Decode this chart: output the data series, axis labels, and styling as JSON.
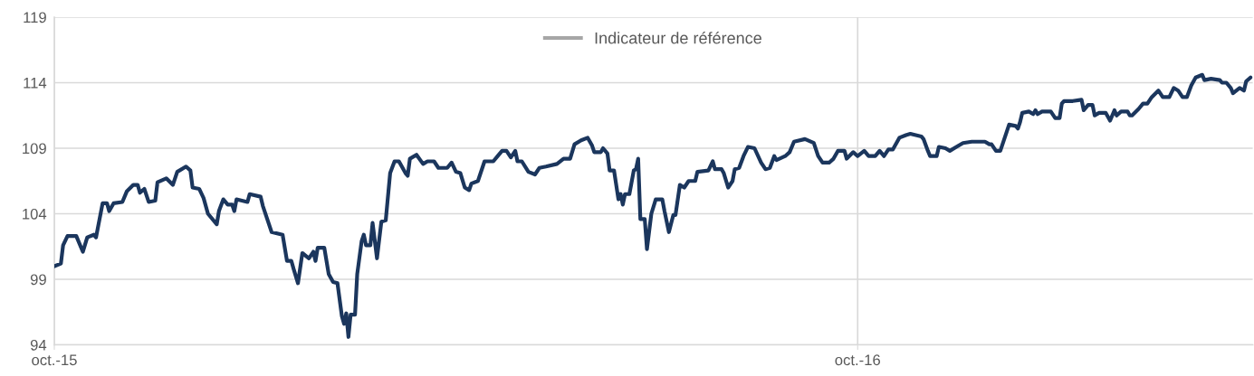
{
  "chart_data": {
    "type": "line",
    "x": [
      "2015-10-01",
      "2015-10-04",
      "2015-10-05",
      "2015-10-07",
      "2015-10-11",
      "2015-10-14",
      "2015-10-16",
      "2015-10-19",
      "2015-10-20",
      "2015-10-23",
      "2015-10-25",
      "2015-10-26",
      "2015-10-28",
      "2015-11-01",
      "2015-11-03",
      "2015-11-06",
      "2015-11-08",
      "2015-11-09",
      "2015-11-11",
      "2015-11-13",
      "2015-11-16",
      "2015-11-17",
      "2015-11-21",
      "2015-11-24",
      "2015-11-26",
      "2015-11-30",
      "2015-12-02",
      "2015-12-03",
      "2015-12-06",
      "2015-12-08",
      "2015-12-10",
      "2015-12-14",
      "2015-12-15",
      "2015-12-17",
      "2015-12-19",
      "2015-12-21",
      "2015-12-22",
      "2015-12-23",
      "2015-12-28",
      "2015-12-29",
      "2016-01-03",
      "2016-01-04",
      "2016-01-08",
      "2016-01-13",
      "2016-01-15",
      "2016-01-17",
      "2016-01-18",
      "2016-01-20",
      "2016-01-22",
      "2016-01-25",
      "2016-01-27",
      "2016-01-28",
      "2016-01-29",
      "2016-02-01",
      "2016-02-03",
      "2016-02-05",
      "2016-02-07",
      "2016-02-09",
      "2016-02-10",
      "2016-02-11",
      "2016-02-12",
      "2016-02-13",
      "2016-02-15",
      "2016-02-16",
      "2016-02-18",
      "2016-02-19",
      "2016-02-20",
      "2016-02-22",
      "2016-02-23",
      "2016-02-25",
      "2016-02-27",
      "2016-02-29",
      "2016-03-02",
      "2016-03-04",
      "2016-03-06",
      "2016-03-09",
      "2016-03-10",
      "2016-03-11",
      "2016-03-14",
      "2016-03-17",
      "2016-03-19",
      "2016-03-22",
      "2016-03-24",
      "2016-03-28",
      "2016-03-30",
      "2016-04-01",
      "2016-04-03",
      "2016-04-05",
      "2016-04-07",
      "2016-04-08",
      "2016-04-11",
      "2016-04-14",
      "2016-04-18",
      "2016-04-20",
      "2016-04-22",
      "2016-04-24",
      "2016-04-26",
      "2016-04-28",
      "2016-04-29",
      "2016-05-01",
      "2016-05-04",
      "2016-05-07",
      "2016-05-09",
      "2016-05-12",
      "2016-05-17",
      "2016-05-20",
      "2016-05-23",
      "2016-05-25",
      "2016-05-28",
      "2016-05-31",
      "2016-06-02",
      "2016-06-03",
      "2016-06-06",
      "2016-06-07",
      "2016-06-09",
      "2016-06-10",
      "2016-06-12",
      "2016-06-14",
      "2016-06-15",
      "2016-06-16",
      "2016-06-17",
      "2016-06-19",
      "2016-06-21",
      "2016-06-22",
      "2016-06-23",
      "2016-06-24",
      "2016-06-26",
      "2016-06-27",
      "2016-06-29",
      "2016-07-01",
      "2016-07-04",
      "2016-07-05",
      "2016-07-07",
      "2016-07-09",
      "2016-07-10",
      "2016-07-12",
      "2016-07-14",
      "2016-07-16",
      "2016-07-19",
      "2016-07-20",
      "2016-07-25",
      "2016-07-27",
      "2016-07-28",
      "2016-07-31",
      "2016-08-01",
      "2016-08-03",
      "2016-08-05",
      "2016-08-06",
      "2016-08-08",
      "2016-08-10",
      "2016-08-12",
      "2016-08-15",
      "2016-08-18",
      "2016-08-20",
      "2016-08-22",
      "2016-08-24",
      "2016-08-25",
      "2016-08-29",
      "2016-08-31",
      "2016-09-02",
      "2016-09-07",
      "2016-09-11",
      "2016-09-13",
      "2016-09-15",
      "2016-09-18",
      "2016-09-20",
      "2016-09-22",
      "2016-09-25",
      "2016-09-26",
      "2016-09-29",
      "2016-10-01",
      "2016-10-04",
      "2016-10-06",
      "2016-10-09",
      "2016-10-11",
      "2016-10-13",
      "2016-10-15",
      "2016-10-17",
      "2016-10-20",
      "2016-10-23",
      "2016-10-25",
      "2016-10-30",
      "2016-10-31",
      "2016-11-02",
      "2016-11-03",
      "2016-11-06",
      "2016-11-07",
      "2016-11-10",
      "2016-11-12",
      "2016-11-15",
      "2016-11-18",
      "2016-11-22",
      "2016-11-28",
      "2016-11-30",
      "2016-12-01",
      "2016-12-03",
      "2016-12-05",
      "2016-12-08",
      "2016-12-09",
      "2016-12-12",
      "2016-12-13",
      "2016-12-14",
      "2016-12-15",
      "2016-12-18",
      "2016-12-20",
      "2016-12-21",
      "2016-12-22",
      "2016-12-24",
      "2016-12-28",
      "2016-12-30",
      "2017-01-01",
      "2017-01-02",
      "2017-01-03",
      "2017-01-07",
      "2017-01-11",
      "2017-01-12",
      "2017-01-14",
      "2017-01-16",
      "2017-01-17",
      "2017-01-19",
      "2017-01-22",
      "2017-01-24",
      "2017-01-26",
      "2017-01-27",
      "2017-01-29",
      "2017-02-01",
      "2017-02-02",
      "2017-02-03",
      "2017-02-06",
      "2017-02-08",
      "2017-02-10",
      "2017-02-12",
      "2017-02-15",
      "2017-02-17",
      "2017-02-20",
      "2017-02-22",
      "2017-02-24",
      "2017-02-26",
      "2017-02-28",
      "2017-03-02",
      "2017-03-04",
      "2017-03-07",
      "2017-03-08",
      "2017-03-11",
      "2017-03-15",
      "2017-03-16",
      "2017-03-18",
      "2017-03-20",
      "2017-03-21",
      "2017-03-24",
      "2017-03-26",
      "2017-03-27",
      "2017-03-29"
    ],
    "series": [
      {
        "color": "#1b365d",
        "values": [
          100.0,
          100.2,
          101.6,
          102.3,
          102.3,
          101.1,
          102.2,
          102.4,
          102.2,
          104.8,
          104.8,
          104.2,
          104.8,
          104.9,
          105.7,
          106.2,
          106.2,
          105.6,
          105.9,
          104.9,
          105.0,
          106.4,
          106.7,
          106.2,
          107.2,
          107.6,
          107.3,
          106.0,
          105.9,
          105.2,
          104.0,
          103.2,
          104.2,
          105.1,
          104.7,
          104.7,
          104.2,
          105.1,
          104.9,
          105.5,
          105.3,
          104.6,
          102.6,
          102.4,
          100.4,
          100.4,
          99.8,
          98.7,
          101.0,
          100.6,
          101.1,
          100.4,
          101.4,
          101.4,
          99.4,
          98.8,
          98.7,
          96.2,
          95.6,
          96.4,
          94.6,
          96.3,
          96.3,
          99.4,
          101.9,
          102.4,
          101.6,
          101.6,
          103.3,
          100.6,
          103.4,
          103.5,
          107.1,
          108.0,
          108.0,
          107.1,
          106.9,
          108.2,
          108.5,
          107.8,
          108.0,
          108.0,
          107.5,
          107.5,
          107.9,
          107.2,
          107.1,
          106.0,
          105.8,
          106.3,
          106.5,
          108.0,
          108.0,
          108.4,
          108.8,
          108.8,
          108.3,
          108.8,
          108.0,
          108.0,
          107.2,
          107.0,
          107.5,
          107.6,
          107.8,
          108.2,
          108.2,
          109.3,
          109.6,
          109.8,
          109.2,
          108.7,
          108.7,
          109.0,
          108.6,
          107.3,
          107.3,
          105.1,
          105.5,
          104.7,
          105.5,
          105.5,
          107.3,
          107.4,
          108.2,
          103.6,
          103.6,
          101.3,
          104.0,
          105.1,
          105.1,
          104.2,
          102.6,
          103.9,
          103.9,
          106.2,
          106.0,
          106.5,
          106.5,
          107.2,
          107.3,
          108.0,
          107.4,
          107.4,
          107.1,
          106.0,
          106.5,
          107.4,
          107.5,
          108.4,
          109.1,
          109.0,
          107.9,
          107.4,
          107.5,
          108.4,
          108.1,
          108.4,
          108.7,
          109.5,
          109.7,
          109.4,
          108.4,
          107.9,
          107.9,
          108.2,
          108.8,
          108.8,
          108.2,
          108.7,
          108.4,
          108.8,
          108.4,
          108.4,
          108.8,
          108.4,
          108.9,
          108.9,
          109.8,
          110.0,
          110.1,
          109.9,
          109.7,
          108.8,
          108.4,
          108.4,
          109.1,
          109.0,
          108.8,
          109.1,
          109.4,
          109.5,
          109.5,
          109.3,
          109.3,
          108.8,
          108.8,
          110.3,
          110.8,
          110.7,
          110.5,
          111.0,
          111.7,
          111.8,
          111.6,
          111.9,
          111.6,
          111.8,
          111.8,
          111.3,
          111.3,
          112.4,
          112.6,
          112.6,
          112.7,
          111.9,
          112.3,
          112.3,
          111.5,
          111.7,
          111.7,
          111.1,
          111.9,
          111.5,
          111.8,
          111.8,
          111.5,
          111.5,
          112.0,
          112.4,
          112.4,
          112.9,
          113.4,
          112.9,
          112.9,
          113.6,
          113.4,
          112.9,
          112.9,
          113.8,
          114.4,
          114.6,
          114.2,
          114.3,
          114.2,
          114.0,
          114.0,
          113.6,
          113.2,
          113.6,
          113.4,
          114.1,
          114.4
        ]
      },
      {
        "name": "Indicateur de référence",
        "color": "#a6a6a6",
        "values": [
          null,
          null,
          null,
          null,
          null,
          null,
          null,
          null,
          null,
          null,
          null,
          null,
          null,
          null,
          null,
          null,
          null,
          null,
          null,
          null,
          null,
          null,
          null,
          null,
          null,
          null,
          null,
          null,
          null,
          null,
          null,
          null,
          null,
          null,
          null,
          null,
          null,
          null,
          null,
          null,
          null,
          null,
          null,
          null,
          null,
          null,
          null,
          null,
          null,
          null,
          null,
          null,
          null,
          null,
          null,
          null,
          null,
          null,
          null,
          null,
          null,
          null,
          null,
          null,
          null,
          null,
          null,
          null,
          null,
          null,
          null,
          null,
          null,
          null,
          null,
          null,
          null,
          null,
          null,
          null,
          null,
          null,
          null,
          null,
          null,
          null,
          null,
          null,
          null,
          null,
          null,
          null,
          null,
          null,
          null,
          null,
          null,
          null,
          null,
          null,
          null,
          null,
          null,
          null,
          null,
          null,
          null,
          null,
          null,
          null,
          null,
          null,
          null,
          null,
          null,
          null,
          null,
          null,
          null,
          null,
          null,
          null,
          null,
          null,
          null,
          null,
          null,
          null,
          null,
          null,
          null,
          null,
          null,
          null,
          null,
          null,
          null,
          null,
          null,
          null,
          null,
          null,
          null,
          null,
          null,
          null,
          null,
          null,
          null,
          null,
          null,
          null,
          null,
          null,
          null,
          null,
          null,
          null,
          null,
          null,
          null,
          null,
          null,
          null,
          null,
          null,
          null,
          null,
          null,
          null,
          null,
          null,
          null,
          null,
          null,
          null,
          null,
          null,
          null,
          null,
          null,
          null,
          null,
          null,
          null,
          null,
          null,
          null,
          null,
          null,
          null,
          null,
          null,
          null,
          null,
          null,
          null,
          null,
          null,
          null,
          null,
          null,
          null,
          null,
          null,
          null,
          null,
          null,
          null,
          null,
          null,
          null,
          null,
          null,
          null,
          null,
          null,
          null,
          null,
          null,
          null,
          null,
          null,
          null,
          null,
          null,
          null,
          null,
          null,
          null,
          null,
          null,
          null,
          null,
          null,
          null,
          null,
          null,
          null,
          null,
          null,
          null,
          null,
          null,
          null,
          null,
          null,
          null,
          null,
          null,
          null,
          null,
          null
        ]
      }
    ],
    "xlim": [
      "2015-10-01",
      "2017-03-30"
    ],
    "xticks": [
      {
        "value": "2015-10-01",
        "label": "oct.-15"
      },
      {
        "value": "2016-10-01",
        "label": "oct.-16"
      }
    ],
    "ylim": [
      94,
      119
    ],
    "yticks": [
      94,
      99,
      104,
      109,
      114,
      119
    ],
    "grid": true,
    "legend": "top",
    "marker": "none",
    "line_style": "solid"
  }
}
